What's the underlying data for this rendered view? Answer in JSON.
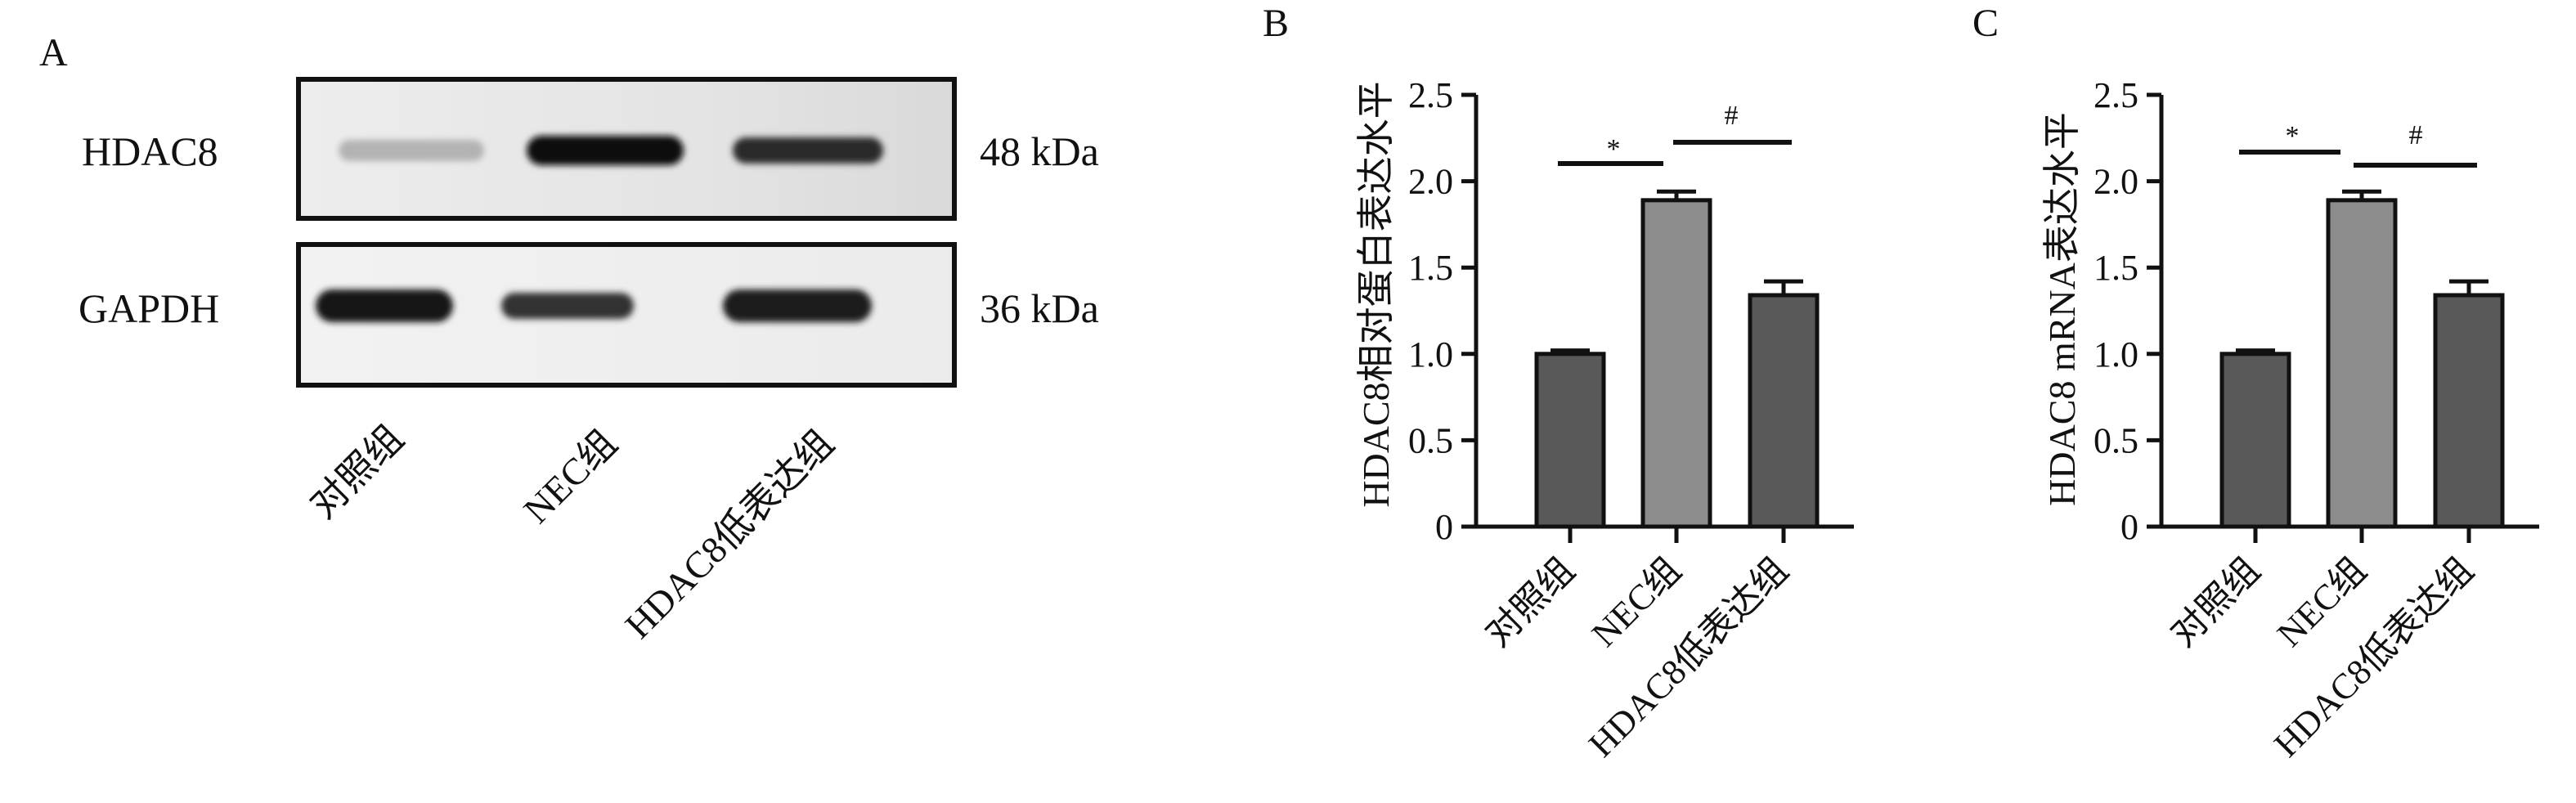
{
  "panel_a": {
    "label": "A",
    "rows": [
      {
        "protein": "HDAC8",
        "size": "48 kDa",
        "band_intensity": [
          0.22,
          1.0,
          0.86
        ]
      },
      {
        "protein": "GAPDH",
        "size": "36 kDa",
        "band_intensity": [
          0.96,
          0.84,
          0.94
        ]
      }
    ],
    "lanes": [
      "对照组",
      "NEC组",
      "HDAC8低表达组"
    ]
  },
  "chart_data": [
    {
      "type": "bar",
      "panel": "B",
      "categories": [
        "对照组",
        "NEC组",
        "HDAC8低表达组"
      ],
      "values": [
        1.0,
        1.89,
        1.34
      ],
      "errors": [
        0.02,
        0.05,
        0.08
      ],
      "ylabel": "HDAC8相对蛋白表达水平",
      "ylim": [
        0,
        2.5
      ],
      "yticks": [
        "0",
        "0.5",
        "1.0",
        "1.5",
        "2.0",
        "2.5"
      ],
      "bar_colors": [
        "#595959",
        "#8c8c8c",
        "#595959"
      ],
      "grid": false,
      "significance": [
        {
          "pair": [
            0,
            1
          ],
          "symbol": "*"
        },
        {
          "pair": [
            1,
            2
          ],
          "symbol": "#"
        }
      ]
    },
    {
      "type": "bar",
      "panel": "C",
      "categories": [
        "对照组",
        "NEC组",
        "HDAC8低表达组"
      ],
      "values": [
        1.0,
        1.89,
        1.34
      ],
      "errors": [
        0.02,
        0.05,
        0.08
      ],
      "ylabel": "HDAC8 mRNA表达水平",
      "ylim": [
        0,
        2.5
      ],
      "yticks": [
        "0",
        "0.5",
        "1.0",
        "1.5",
        "2.0",
        "2.5"
      ],
      "bar_colors": [
        "#595959",
        "#8c8c8c",
        "#595959"
      ],
      "grid": false,
      "significance": [
        {
          "pair": [
            0,
            1
          ],
          "symbol": "*"
        },
        {
          "pair": [
            1,
            2
          ],
          "symbol": "#"
        }
      ]
    }
  ]
}
